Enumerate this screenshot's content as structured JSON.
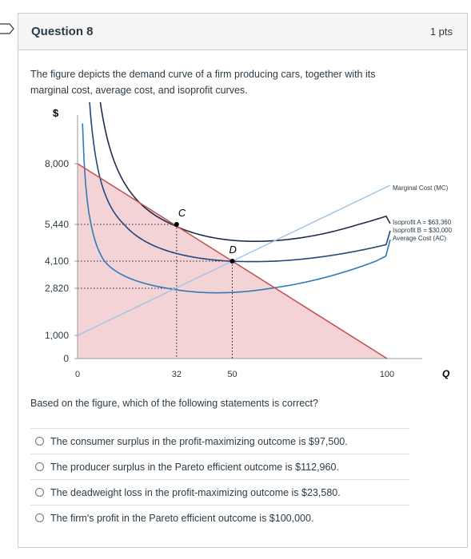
{
  "question": {
    "title": "Question 8",
    "points": "1 pts",
    "text": "The figure depicts the demand curve of a firm producing cars, together with its marginal cost, average cost, and isoprofit curves.",
    "prompt": "Based on the figure, which of the following statements is correct?"
  },
  "answers": [
    "The consumer surplus in the profit-maximizing outcome is $97,500.",
    "The producer surplus in the Pareto efficient outcome is $112,960.",
    "The deadweight loss in the profit-maximizing outcome is $23,580.",
    "The firm's profit in the Pareto efficient outcome is $100,000."
  ],
  "figure": {
    "y_axis_label": "$",
    "x_axis_label": "Q",
    "y_ticks": [
      "8,000",
      "5,440",
      "4,100",
      "2,820",
      "1,000",
      "0"
    ],
    "x_ticks": [
      "0",
      "32",
      "50",
      "100"
    ],
    "point_labels": [
      "C",
      "D"
    ],
    "legend": {
      "mc": "Marginal Cost (MC)",
      "iso_a": "Isoprofit A = $63,360",
      "iso_b": "Isoprofit B = $30,000",
      "ac": "Average Cost (AC)"
    },
    "colors": {
      "demand": "#c0504d",
      "surplus_fill": "#f4d3d6",
      "mc": "#9cc3e6",
      "iso_a": "#1f2d4d",
      "iso_b": "#24467a",
      "ac": "#2e7bb8"
    },
    "data": {
      "demand": {
        "p_at_0": 8000,
        "q_at_p0": 100
      },
      "mc": {
        "p_at_0": 1000,
        "slope": 62
      },
      "points": [
        {
          "name": "C",
          "q": 32,
          "p": 5440
        },
        {
          "name": "D",
          "q": 50,
          "p": 4100
        }
      ],
      "profit_max_q": 32,
      "pareto_q": 50,
      "ac_min_p": 2820
    }
  }
}
